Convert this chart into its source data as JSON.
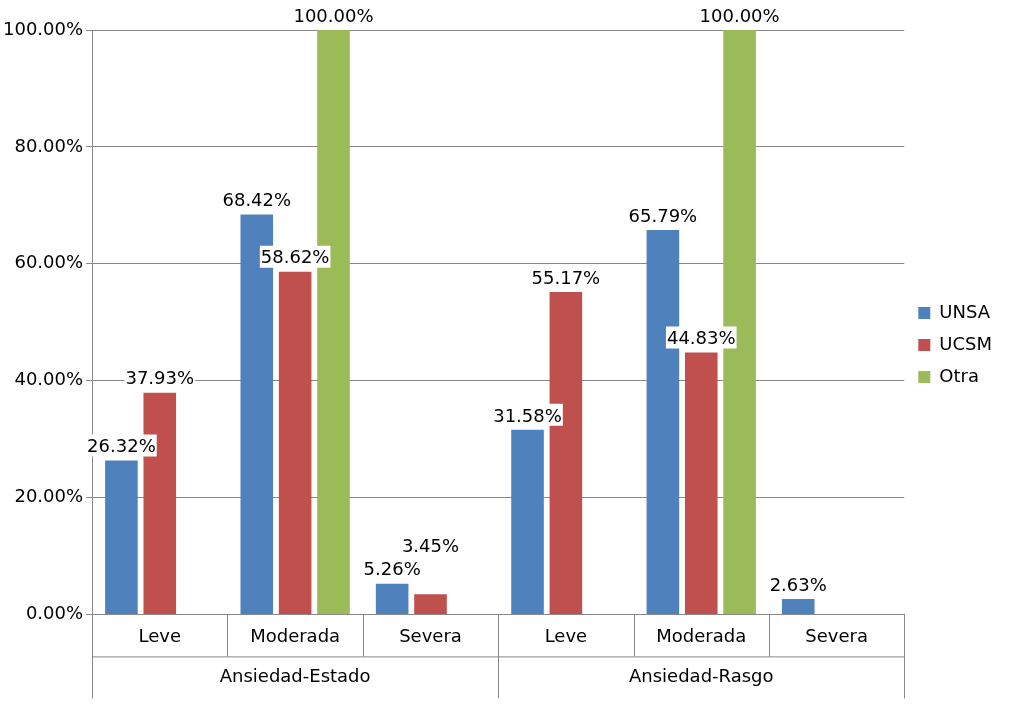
{
  "chart_data": {
    "type": "bar",
    "categories": [
      "Leve",
      "Moderada",
      "Severa",
      "Leve",
      "Moderada",
      "Severa"
    ],
    "series": [
      {
        "name": "UNSA",
        "color": "#4f81bd",
        "values": [
          26.32,
          68.42,
          5.26,
          31.58,
          65.79,
          2.63
        ],
        "value_labels": [
          "26.32%",
          "68.42%",
          "5.26%",
          "31.58%",
          "65.79%",
          "2.63%"
        ]
      },
      {
        "name": "UCSM",
        "color": "#c0504d",
        "values": [
          37.93,
          58.62,
          3.45,
          55.17,
          44.83,
          null
        ],
        "value_labels": [
          "37.93%",
          "58.62%",
          "3.45%",
          "55.17%",
          "44.83%",
          null
        ]
      },
      {
        "name": "Otra",
        "color": "#9bbb59",
        "values": [
          null,
          100,
          null,
          null,
          100,
          null
        ],
        "value_labels": [
          null,
          "100.00%",
          null,
          null,
          "100.00%",
          null
        ]
      }
    ],
    "ylim": [
      0,
      100
    ],
    "yticks": [
      {
        "value": 0,
        "label": "0.00%"
      },
      {
        "value": 20,
        "label": "20.00%"
      },
      {
        "value": 40,
        "label": "40.00%"
      },
      {
        "value": 60,
        "label": "60.00%"
      },
      {
        "value": 80,
        "label": "80.00%"
      },
      {
        "value": 100,
        "label": "100.00%"
      }
    ],
    "annotations": [
      "Ansiedad-Estado",
      "Ansiedad-Rasgo"
    ],
    "grid": "y",
    "legend": "right"
  }
}
